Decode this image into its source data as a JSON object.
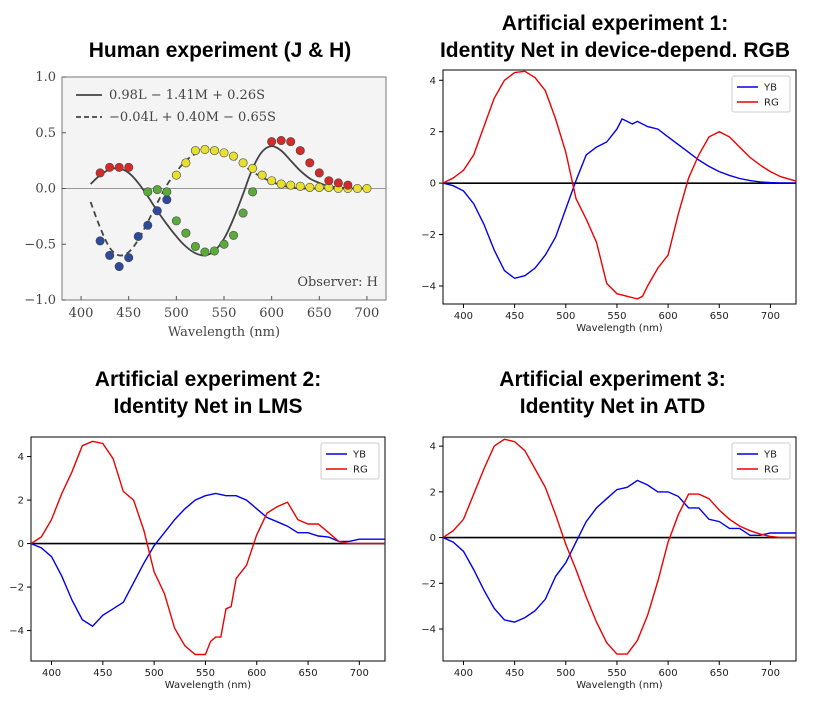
{
  "titles": {
    "human": "Human experiment (J & H)",
    "art1_line1": "Artificial experiment 1:",
    "art1_line2": "Identity Net in device-depend. RGB",
    "art2_line1": "Artificial experiment 2:",
    "art2_line2": "Identity Net in LMS",
    "art3_line1": "Artificial experiment 3:",
    "art3_line2": "Identity Net in ATD"
  },
  "chart_data": [
    {
      "type": "scatter",
      "title": "Human experiment (J & H)",
      "xlabel": "Wavelength (nm)",
      "ylabel": "",
      "xlim": [
        380,
        720
      ],
      "ylim": [
        -1.0,
        1.0
      ],
      "xticks": [
        400,
        450,
        500,
        550,
        600,
        650,
        700
      ],
      "yticks": [
        "1.0",
        "0.5",
        "0.0",
        "−0.5",
        "−1.0"
      ],
      "ytick_values": [
        1.0,
        0.5,
        0.0,
        -0.5,
        -1.0
      ],
      "annotation": "Observer: H",
      "legend": [
        "0.98L − 1.41M + 0.26S",
        "−0.04L + 0.40M − 0.65S"
      ],
      "solid_fit": {
        "x": [
          410,
          420,
          430,
          440,
          450,
          460,
          470,
          480,
          490,
          500,
          510,
          520,
          530,
          540,
          550,
          560,
          570,
          580,
          590,
          600,
          610,
          620,
          630,
          640,
          650,
          660,
          670,
          680,
          690,
          700
        ],
        "y": [
          0.04,
          0.12,
          0.17,
          0.18,
          0.14,
          0.05,
          -0.07,
          -0.2,
          -0.32,
          -0.43,
          -0.52,
          -0.58,
          -0.6,
          -0.56,
          -0.45,
          -0.27,
          -0.05,
          0.18,
          0.33,
          0.38,
          0.34,
          0.25,
          0.16,
          0.09,
          0.05,
          0.02,
          0.01,
          0.0,
          0.0,
          0.0
        ]
      },
      "dashed_fit": {
        "x": [
          410,
          420,
          430,
          440,
          450,
          460,
          470,
          480,
          490,
          500,
          510,
          520,
          530,
          540,
          550,
          560,
          570,
          580,
          590,
          600,
          610,
          620,
          630,
          640,
          650,
          660,
          670,
          680,
          690,
          700
        ],
        "y": [
          -0.12,
          -0.35,
          -0.53,
          -0.6,
          -0.57,
          -0.46,
          -0.3,
          -0.13,
          0.03,
          0.15,
          0.25,
          0.31,
          0.34,
          0.34,
          0.31,
          0.27,
          0.21,
          0.15,
          0.1,
          0.06,
          0.03,
          0.01,
          0.0,
          0.0,
          0.0,
          0.0,
          0.0,
          0.0,
          0.0,
          0.0
        ]
      },
      "point_groups": [
        {
          "color": "#2e4a9a",
          "points": [
            [
              420,
              -0.47
            ],
            [
              430,
              -0.6
            ],
            [
              440,
              -0.7
            ],
            [
              450,
              -0.62
            ],
            [
              460,
              -0.43
            ],
            [
              470,
              -0.33
            ],
            [
              480,
              -0.2
            ],
            [
              490,
              -0.1
            ]
          ]
        },
        {
          "color": "#d42a2a",
          "points": [
            [
              420,
              0.14
            ],
            [
              430,
              0.19
            ],
            [
              440,
              0.19
            ],
            [
              450,
              0.19
            ]
          ]
        },
        {
          "color": "#5aab3a",
          "points": [
            [
              470,
              -0.03
            ],
            [
              480,
              -0.01
            ],
            [
              490,
              -0.03
            ],
            [
              500,
              -0.29
            ],
            [
              510,
              -0.4
            ],
            [
              520,
              -0.52
            ],
            [
              530,
              -0.57
            ],
            [
              540,
              -0.56
            ],
            [
              550,
              -0.5
            ],
            [
              560,
              -0.42
            ],
            [
              570,
              -0.22
            ],
            [
              580,
              -0.03
            ]
          ]
        },
        {
          "color": "#e8e030",
          "points": [
            [
              500,
              0.12
            ],
            [
              510,
              0.23
            ],
            [
              520,
              0.34
            ],
            [
              530,
              0.35
            ],
            [
              540,
              0.34
            ],
            [
              550,
              0.32
            ],
            [
              560,
              0.29
            ],
            [
              570,
              0.23
            ],
            [
              580,
              0.18
            ],
            [
              590,
              0.12
            ],
            [
              600,
              0.07
            ],
            [
              610,
              0.04
            ],
            [
              620,
              0.03
            ],
            [
              630,
              0.02
            ],
            [
              640,
              0.01
            ],
            [
              650,
              0.01
            ],
            [
              660,
              0.01
            ],
            [
              670,
              0.0
            ],
            [
              680,
              0.0
            ],
            [
              690,
              0.0
            ],
            [
              700,
              0.0
            ]
          ]
        },
        {
          "color": "#d42a2a",
          "points": [
            [
              600,
              0.42
            ],
            [
              610,
              0.43
            ],
            [
              620,
              0.42
            ],
            [
              630,
              0.34
            ],
            [
              640,
              0.23
            ],
            [
              650,
              0.14
            ],
            [
              660,
              0.07
            ],
            [
              670,
              0.05
            ],
            [
              680,
              0.03
            ]
          ]
        }
      ]
    },
    {
      "type": "line",
      "title": "Artificial experiment 1: Identity Net in device-depend. RGB",
      "xlabel": "Wavelength (nm)",
      "xlim": [
        380,
        725
      ],
      "ylim": [
        -4.7,
        4.4
      ],
      "xticks": [
        400,
        450,
        500,
        550,
        600,
        650,
        700
      ],
      "yticks": [
        4,
        2,
        0,
        -2,
        -4
      ],
      "legend_pos": "top-right",
      "series": [
        {
          "name": "YB",
          "color": "#0000ee",
          "x": [
            380,
            390,
            400,
            410,
            420,
            430,
            440,
            450,
            460,
            470,
            480,
            490,
            500,
            510,
            520,
            530,
            540,
            550,
            555,
            560,
            565,
            570,
            580,
            590,
            600,
            610,
            620,
            630,
            640,
            650,
            660,
            670,
            680,
            690,
            700,
            710,
            725
          ],
          "y": [
            0,
            -0.1,
            -0.3,
            -0.8,
            -1.6,
            -2.6,
            -3.4,
            -3.7,
            -3.6,
            -3.3,
            -2.8,
            -2.1,
            -1.0,
            0.1,
            1.1,
            1.4,
            1.6,
            2.1,
            2.5,
            2.4,
            2.3,
            2.4,
            2.2,
            2.1,
            1.8,
            1.5,
            1.2,
            0.9,
            0.65,
            0.45,
            0.3,
            0.18,
            0.1,
            0.05,
            0.02,
            0.01,
            0
          ]
        },
        {
          "name": "RG",
          "color": "#ee0000",
          "x": [
            380,
            390,
            400,
            410,
            420,
            430,
            440,
            450,
            460,
            470,
            480,
            490,
            500,
            510,
            520,
            530,
            540,
            550,
            560,
            570,
            575,
            580,
            590,
            600,
            610,
            620,
            630,
            640,
            650,
            660,
            670,
            680,
            690,
            700,
            710,
            725
          ],
          "y": [
            0,
            0.2,
            0.5,
            1.1,
            2.2,
            3.3,
            4.0,
            4.3,
            4.35,
            4.1,
            3.6,
            2.5,
            1.2,
            -0.6,
            -1.4,
            -2.3,
            -3.9,
            -4.3,
            -4.4,
            -4.5,
            -4.4,
            -4.0,
            -3.3,
            -2.8,
            -1.2,
            0.2,
            1.1,
            1.8,
            2.0,
            1.8,
            1.4,
            1.0,
            0.7,
            0.45,
            0.25,
            0.08
          ]
        }
      ]
    },
    {
      "type": "line",
      "title": "Artificial experiment 2: Identity Net in LMS",
      "xlabel": "Wavelength (nm)",
      "xlim": [
        380,
        725
      ],
      "ylim": [
        -5.4,
        4.9
      ],
      "xticks": [
        400,
        450,
        500,
        550,
        600,
        650,
        700
      ],
      "yticks": [
        4,
        2,
        0,
        -2,
        -4
      ],
      "legend_pos": "top-right",
      "series": [
        {
          "name": "YB",
          "color": "#0000ee",
          "x": [
            380,
            390,
            400,
            410,
            420,
            430,
            440,
            450,
            460,
            470,
            480,
            490,
            500,
            510,
            520,
            530,
            540,
            550,
            560,
            570,
            580,
            590,
            600,
            610,
            620,
            630,
            640,
            650,
            660,
            670,
            680,
            690,
            700,
            710,
            725
          ],
          "y": [
            0,
            -0.2,
            -0.6,
            -1.5,
            -2.6,
            -3.5,
            -3.8,
            -3.3,
            -3.0,
            -2.7,
            -1.8,
            -0.9,
            -0.1,
            0.5,
            1.1,
            1.6,
            2.0,
            2.2,
            2.3,
            2.2,
            2.2,
            2.0,
            1.6,
            1.2,
            1.0,
            0.8,
            0.5,
            0.5,
            0.35,
            0.3,
            0.1,
            0.1,
            0.2,
            0.2,
            0.2
          ]
        },
        {
          "name": "RG",
          "color": "#ee0000",
          "x": [
            380,
            390,
            400,
            410,
            420,
            430,
            440,
            450,
            460,
            470,
            480,
            490,
            500,
            510,
            520,
            530,
            540,
            545,
            550,
            555,
            560,
            565,
            570,
            575,
            580,
            590,
            600,
            610,
            620,
            630,
            640,
            650,
            660,
            670,
            680,
            690,
            700,
            710,
            725
          ],
          "y": [
            0,
            0.3,
            1.1,
            2.3,
            3.3,
            4.5,
            4.7,
            4.6,
            3.9,
            2.4,
            2.0,
            0.6,
            -1.3,
            -2.3,
            -3.9,
            -4.7,
            -5.1,
            -5.1,
            -5.1,
            -4.5,
            -4.3,
            -4.3,
            -3.0,
            -2.9,
            -1.6,
            -1.0,
            0.4,
            1.4,
            1.7,
            1.9,
            1.1,
            0.9,
            0.9,
            0.5,
            0.1,
            0.0,
            0.0,
            0.0,
            0.0
          ]
        }
      ]
    },
    {
      "type": "line",
      "title": "Artificial experiment 3: Identity Net in ATD",
      "xlabel": "Wavelength (nm)",
      "xlim": [
        380,
        725
      ],
      "ylim": [
        -5.4,
        4.4
      ],
      "xticks": [
        400,
        450,
        500,
        550,
        600,
        650,
        700
      ],
      "yticks": [
        4,
        2,
        0,
        -2,
        -4
      ],
      "legend_pos": "top-right",
      "series": [
        {
          "name": "YB",
          "color": "#0000ee",
          "x": [
            380,
            390,
            400,
            410,
            420,
            430,
            440,
            450,
            460,
            470,
            480,
            490,
            500,
            510,
            520,
            530,
            540,
            550,
            560,
            570,
            580,
            590,
            600,
            610,
            620,
            630,
            640,
            650,
            660,
            670,
            680,
            690,
            700,
            710,
            725
          ],
          "y": [
            0,
            -0.2,
            -0.6,
            -1.4,
            -2.3,
            -3.1,
            -3.6,
            -3.7,
            -3.5,
            -3.2,
            -2.7,
            -1.7,
            -1.1,
            -0.2,
            0.7,
            1.3,
            1.7,
            2.1,
            2.2,
            2.5,
            2.3,
            2.0,
            2.0,
            1.8,
            1.3,
            1.3,
            0.8,
            0.7,
            0.4,
            0.4,
            0.1,
            0.1,
            0.2,
            0.2,
            0.2
          ]
        },
        {
          "name": "RG",
          "color": "#ee0000",
          "x": [
            380,
            390,
            400,
            410,
            420,
            430,
            440,
            450,
            460,
            470,
            480,
            490,
            500,
            510,
            520,
            530,
            540,
            550,
            560,
            570,
            580,
            590,
            600,
            610,
            620,
            630,
            640,
            650,
            660,
            670,
            680,
            690,
            700,
            710,
            725
          ],
          "y": [
            0,
            0.3,
            0.8,
            1.9,
            3.0,
            4.0,
            4.3,
            4.2,
            3.8,
            3.0,
            2.2,
            1.0,
            -0.3,
            -1.4,
            -2.6,
            -3.7,
            -4.6,
            -5.1,
            -5.1,
            -4.5,
            -3.4,
            -1.9,
            -0.2,
            1.0,
            1.9,
            1.9,
            1.7,
            1.2,
            0.8,
            0.5,
            0.3,
            0.15,
            0.05,
            0.0,
            0.0
          ]
        }
      ]
    }
  ]
}
